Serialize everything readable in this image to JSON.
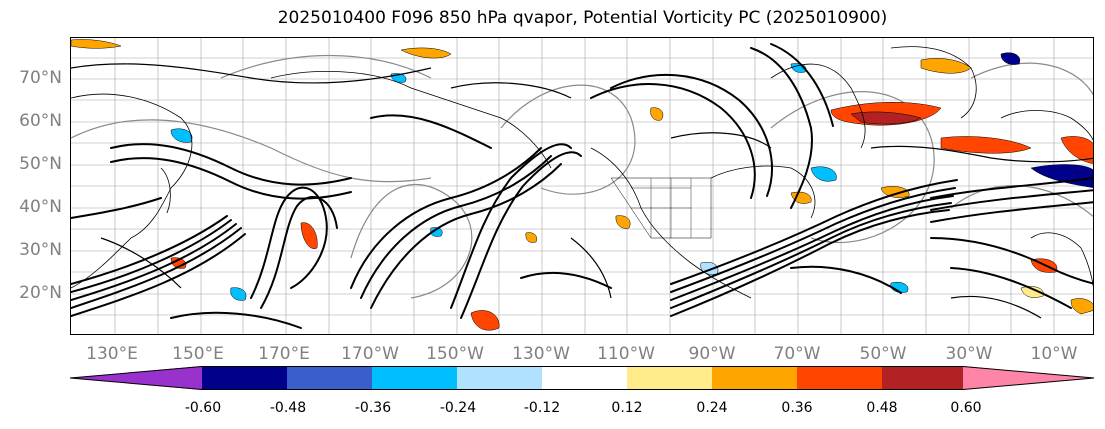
{
  "title": "2025010400 F096 850 hPa qvapor, Potential Vorticity PC (2025010900)",
  "map": {
    "lat_labels": [
      "70°N",
      "60°N",
      "50°N",
      "40°N",
      "30°N",
      "20°N"
    ],
    "lon_labels": [
      "130°E",
      "150°E",
      "170°E",
      "170°W",
      "150°W",
      "130°W",
      "110°W",
      "90°W",
      "70°W",
      "50°W",
      "30°W",
      "10°W"
    ],
    "contour_color": "#000000",
    "coastline_color": "#000000",
    "gridline_color": "#808080"
  },
  "colorbar": {
    "tick_labels": [
      "-0.60",
      "-0.48",
      "-0.36",
      "-0.24",
      "-0.12",
      "0.12",
      "0.24",
      "0.36",
      "0.48",
      "0.60"
    ],
    "under_color": "#9932cc",
    "over_color": "#ff85a8",
    "bin_colors": [
      "#00008b",
      "#3a5fcd",
      "#00bfff",
      "#b0e2ff",
      "#ffffff",
      "#ffeb8a",
      "#ffa500",
      "#ff4500",
      "#b22222"
    ]
  }
}
